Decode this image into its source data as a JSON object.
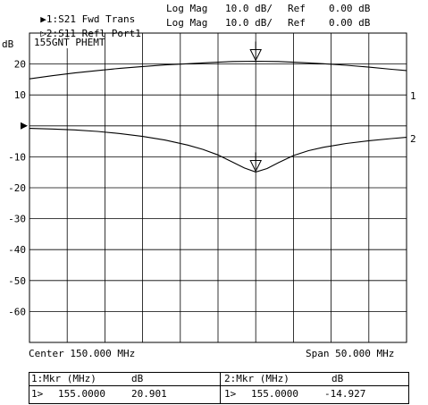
{
  "header": {
    "trace1": {
      "prefix": "▶1:",
      "name": "S21 Fwd Trans",
      "format": "Log Mag",
      "scale": "10.0 dB/",
      "ref_label": "Ref",
      "ref_value": "0.00 dB"
    },
    "trace2": {
      "prefix": "▷2:",
      "name": "S11 Refl Port1",
      "format": "Log Mag",
      "scale": "10.0 dB/",
      "ref_label": "Ref",
      "ref_value": "0.00 dB"
    }
  },
  "plot": {
    "unit_label": "dB",
    "title": "155GNT PHEMT",
    "center_label": "Center 150.000 MHz",
    "span_label": "Span 50.000 MHz",
    "trace_labels": [
      "1",
      "2"
    ]
  },
  "markers": {
    "m1": {
      "header": "1:Mkr (MHz)",
      "unit": "dB",
      "id": "1>",
      "freq": "155.0000",
      "value": "20.901"
    },
    "m2": {
      "header": "2:Mkr (MHz)",
      "unit": "dB",
      "id": "1>",
      "freq": "155.0000",
      "value": "-14.927"
    }
  },
  "chart_data": {
    "type": "line",
    "title": "155GNT PHEMT",
    "xlabel": "",
    "ylabel": "dB",
    "xlim": [
      125,
      175
    ],
    "ylim": [
      -70,
      30
    ],
    "grid": true,
    "ytick_labels": [
      "20",
      "10",
      "",
      "-10",
      "-20",
      "-30",
      "-40",
      "-50",
      "-60"
    ],
    "ytick_values": [
      20,
      10,
      0,
      -10,
      -20,
      -30,
      -40,
      -50,
      -60
    ],
    "reference_level": 0,
    "series": [
      {
        "name": "S21 Fwd Trans",
        "color": "#000000",
        "x": [
          125,
          128,
          131,
          134,
          137,
          140,
          143,
          146,
          149,
          152,
          155,
          158,
          161,
          164,
          167,
          170,
          173,
          175
        ],
        "y": [
          15.2,
          16.2,
          17.1,
          17.9,
          18.6,
          19.2,
          19.7,
          20.1,
          20.5,
          20.8,
          20.9,
          20.8,
          20.5,
          20.1,
          19.6,
          19.0,
          18.3,
          17.9
        ]
      },
      {
        "name": "S11 Refl Port1",
        "color": "#000000",
        "x": [
          125,
          128,
          131,
          134,
          137,
          140,
          143,
          146,
          148,
          150,
          152,
          153.5,
          155,
          156.5,
          158,
          160,
          162,
          164,
          167,
          170,
          173,
          175
        ],
        "y": [
          -0.8,
          -1.0,
          -1.3,
          -1.8,
          -2.5,
          -3.4,
          -4.6,
          -6.2,
          -7.6,
          -9.4,
          -11.8,
          -13.6,
          -14.9,
          -13.8,
          -11.9,
          -9.6,
          -8.0,
          -6.9,
          -5.7,
          -4.8,
          -4.1,
          -3.7
        ]
      }
    ],
    "markers": [
      {
        "series": "S21 Fwd Trans",
        "x": 155.0,
        "y": 20.901
      },
      {
        "series": "S11 Refl Port1",
        "x": 155.0,
        "y": -14.927
      }
    ]
  }
}
